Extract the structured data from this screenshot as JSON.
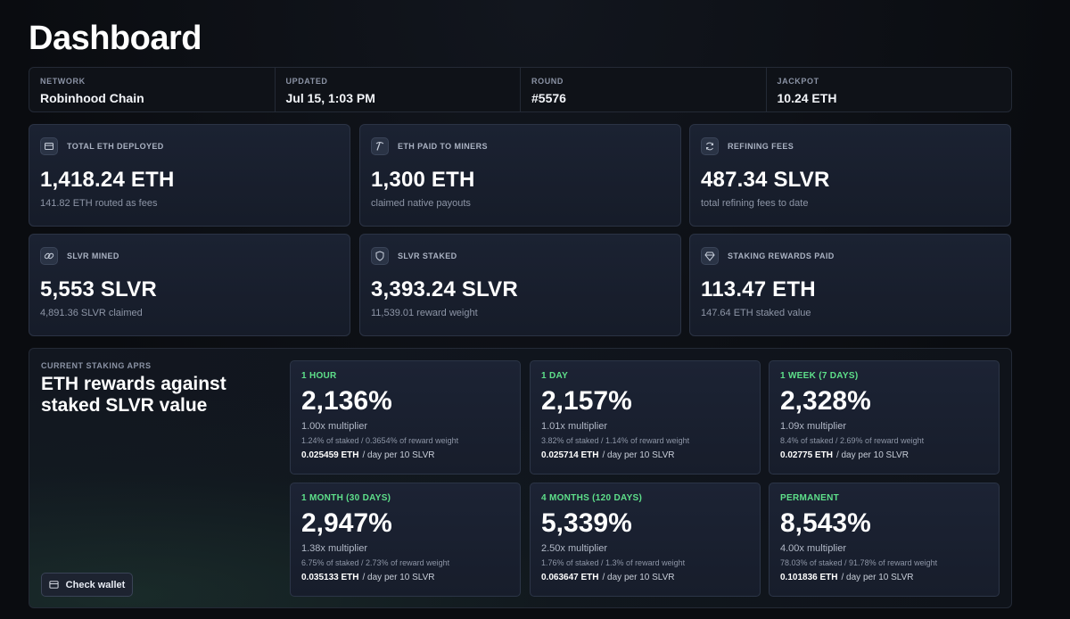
{
  "page": {
    "title": "Dashboard"
  },
  "info": [
    {
      "label": "NETWORK",
      "value": "Robinhood Chain"
    },
    {
      "label": "UPDATED",
      "value": "Jul 15, 1:03 PM"
    },
    {
      "label": "ROUND",
      "value": "#5576"
    },
    {
      "label": "JACKPOT",
      "value": "10.24 ETH"
    }
  ],
  "stats": [
    {
      "icon": "wallet-icon",
      "label": "TOTAL ETH DEPLOYED",
      "value": "1,418.24 ETH",
      "sub": "141.82 ETH routed as fees"
    },
    {
      "icon": "pickaxe-icon",
      "label": "ETH PAID TO MINERS",
      "value": "1,300 ETH",
      "sub": "claimed native payouts"
    },
    {
      "icon": "refresh-icon",
      "label": "REFINING FEES",
      "value": "487.34 SLVR",
      "sub": "total refining fees to date"
    },
    {
      "icon": "link-icon",
      "label": "SLVR MINED",
      "value": "5,553 SLVR",
      "sub": "4,891.36 SLVR claimed"
    },
    {
      "icon": "shield-icon",
      "label": "SLVR STAKED",
      "value": "3,393.24 SLVR",
      "sub": "11,539.01 reward weight"
    },
    {
      "icon": "diamond-icon",
      "label": "STAKING REWARDS PAID",
      "value": "113.47 ETH",
      "sub": "147.64 ETH staked value"
    }
  ],
  "apr": {
    "kicker": "CURRENT STAKING APRS",
    "heading": "ETH rewards against staked SLVR value",
    "wallet_button": "Check wallet",
    "cards": [
      {
        "tag": "1 HOUR",
        "pct": "2,136%",
        "mult": "1.00x multiplier",
        "detail": "1.24% of staked / 0.3654% of reward weight",
        "eth": "0.025459 ETH",
        "per": "/ day per 10 SLVR"
      },
      {
        "tag": "1 DAY",
        "pct": "2,157%",
        "mult": "1.01x multiplier",
        "detail": "3.82% of staked / 1.14% of reward weight",
        "eth": "0.025714 ETH",
        "per": "/ day per 10 SLVR"
      },
      {
        "tag": "1 WEEK (7 DAYS)",
        "pct": "2,328%",
        "mult": "1.09x multiplier",
        "detail": "8.4% of staked / 2.69% of reward weight",
        "eth": "0.02775 ETH",
        "per": "/ day per 10 SLVR"
      },
      {
        "tag": "1 MONTH (30 DAYS)",
        "pct": "2,947%",
        "mult": "1.38x multiplier",
        "detail": "6.75% of staked / 2.73% of reward weight",
        "eth": "0.035133 ETH",
        "per": "/ day per 10 SLVR"
      },
      {
        "tag": "4 MONTHS (120 DAYS)",
        "pct": "5,339%",
        "mult": "2.50x multiplier",
        "detail": "1.76% of staked / 1.3% of reward weight",
        "eth": "0.063647 ETH",
        "per": "/ day per 10 SLVR"
      },
      {
        "tag": "PERMANENT",
        "pct": "8,543%",
        "mult": "4.00x multiplier",
        "detail": "78.03% of staked / 91.78% of reward weight",
        "eth": "0.101836 ETH",
        "per": "/ day per 10 SLVR"
      }
    ]
  },
  "colors": {
    "accent_green": "#5ee08a",
    "background": "#0b0d11",
    "card": "#1b2232"
  }
}
